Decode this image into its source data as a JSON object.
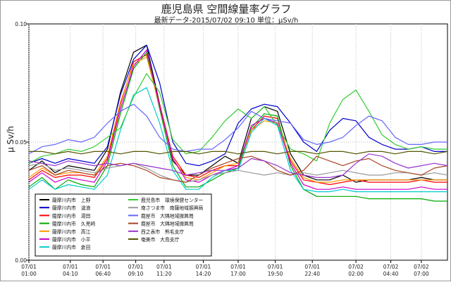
{
  "title": "鹿児島県 空間線量率グラフ",
  "subtitle": "最新データ-2015/07/02 09:10 単位：μSv/h",
  "chart_data": {
    "type": "line",
    "title": "鹿児島県 空間線量率グラフ",
    "subtitle": "最新データ-2015/07/02 09:10 単位：μSv/h",
    "ylabel": "μ Sv/h",
    "ylim": [
      0,
      0.1
    ],
    "y_ticks": [
      "0.00",
      "0.05",
      "0.10"
    ],
    "xlim": [
      0,
      32
    ],
    "x_ticks": [
      {
        "x": 0,
        "date": "07/01",
        "time": "01:00"
      },
      {
        "x": 3.1667,
        "date": "07/01",
        "time": "04:10"
      },
      {
        "x": 5.6667,
        "date": "07/01",
        "time": "06:40"
      },
      {
        "x": 8.1667,
        "date": "07/01",
        "time": "09:10"
      },
      {
        "x": 10.3333,
        "date": "07/01",
        "time": "11:20"
      },
      {
        "x": 13.3333,
        "date": "07/01",
        "time": "14:20"
      },
      {
        "x": 16,
        "date": "07/01",
        "time": "17:00"
      },
      {
        "x": 18.8333,
        "date": "07/01",
        "time": "19:50"
      },
      {
        "x": 21.6667,
        "date": "07/01",
        "time": "22:40"
      },
      {
        "x": 25,
        "date": "07/02",
        "time": "02:00"
      },
      {
        "x": 27.6667,
        "date": "07/02",
        "time": "04:40"
      },
      {
        "x": 30,
        "date": "07/02",
        "time": "07:00"
      }
    ],
    "grid": "dotted vertical lines at ticks, dotted horizontal line at 0.05",
    "legend_position": "bottom-left, two columns",
    "x": [
      0,
      1,
      2,
      3,
      4,
      5,
      6,
      7,
      8,
      9,
      10,
      11,
      12,
      13,
      14,
      15,
      16,
      17,
      18,
      19,
      20,
      21,
      22,
      23,
      24,
      25,
      26,
      27,
      28,
      29,
      30,
      31,
      32
    ],
    "series": [
      {
        "name": "薩摩川内市　上野",
        "color": "#000000",
        "values": [
          0.038,
          0.042,
          0.037,
          0.04,
          0.039,
          0.038,
          0.047,
          0.071,
          0.088,
          0.091,
          0.066,
          0.042,
          0.036,
          0.036,
          0.04,
          0.044,
          0.041,
          0.06,
          0.065,
          0.063,
          0.045,
          0.036,
          0.034,
          0.034,
          0.036,
          0.033,
          0.034,
          0.034,
          0.034,
          0.034,
          0.035,
          0.034,
          0.034
        ]
      },
      {
        "name": "薩摩川内市　滄浪",
        "color": "#0000cc",
        "values": [
          0.041,
          0.043,
          0.041,
          0.043,
          0.042,
          0.041,
          0.048,
          0.07,
          0.085,
          0.091,
          0.075,
          0.05,
          0.041,
          0.04,
          0.042,
          0.045,
          0.058,
          0.064,
          0.066,
          0.065,
          0.058,
          0.05,
          0.046,
          0.055,
          0.06,
          0.059,
          0.052,
          0.049,
          0.047,
          0.047,
          0.048,
          0.046,
          0.046
        ]
      },
      {
        "name": "薩摩川内市　湯田",
        "color": "#ff0000",
        "values": [
          0.034,
          0.038,
          0.035,
          0.036,
          0.036,
          0.035,
          0.043,
          0.066,
          0.084,
          0.087,
          0.066,
          0.044,
          0.036,
          0.035,
          0.038,
          0.04,
          0.04,
          0.055,
          0.061,
          0.06,
          0.042,
          0.034,
          0.033,
          0.032,
          0.033,
          0.034,
          0.033,
          0.033,
          0.033,
          0.033,
          0.034,
          0.033,
          0.033
        ]
      },
      {
        "name": "薩摩川内市　久見崎",
        "color": "#00aa00",
        "values": [
          0.031,
          0.035,
          0.03,
          0.034,
          0.032,
          0.031,
          0.04,
          0.062,
          0.081,
          0.088,
          0.064,
          0.04,
          0.031,
          0.031,
          0.034,
          0.037,
          0.039,
          0.056,
          0.062,
          0.061,
          0.04,
          0.03,
          0.027,
          0.027,
          0.027,
          0.027,
          0.026,
          0.026,
          0.026,
          0.026,
          0.026,
          0.025,
          0.025
        ]
      },
      {
        "name": "薩摩川内市　高江",
        "color": "#ff9900",
        "values": [
          0.035,
          0.039,
          0.036,
          0.037,
          0.037,
          0.036,
          0.044,
          0.067,
          0.083,
          0.086,
          0.065,
          0.043,
          0.035,
          0.034,
          0.037,
          0.04,
          0.041,
          0.055,
          0.059,
          0.058,
          0.043,
          0.035,
          0.033,
          0.033,
          0.034,
          0.034,
          0.034,
          0.034,
          0.034,
          0.034,
          0.034,
          0.034,
          0.034
        ]
      },
      {
        "name": "薩摩川内市　小平",
        "color": "#cc00cc",
        "values": [
          0.033,
          0.037,
          0.033,
          0.035,
          0.034,
          0.033,
          0.042,
          0.064,
          0.082,
          0.089,
          0.065,
          0.043,
          0.034,
          0.033,
          0.036,
          0.038,
          0.04,
          0.057,
          0.06,
          0.058,
          0.041,
          0.032,
          0.03,
          0.03,
          0.031,
          0.03,
          0.03,
          0.03,
          0.03,
          0.03,
          0.031,
          0.03,
          0.03
        ]
      },
      {
        "name": "薩摩川内市　倉田",
        "color": "#00cccc",
        "values": [
          0.03,
          0.034,
          0.03,
          0.032,
          0.031,
          0.03,
          0.036,
          0.055,
          0.07,
          0.073,
          0.058,
          0.038,
          0.03,
          0.03,
          0.035,
          0.038,
          0.038,
          0.054,
          0.06,
          0.057,
          0.038,
          0.03,
          0.029,
          0.029,
          0.03,
          0.029,
          0.029,
          0.029,
          0.029,
          0.029,
          0.029,
          0.029,
          0.029
        ]
      },
      {
        "name": "鹿児島市　環境保健センター",
        "color": "#33cc33",
        "values": [
          0.041,
          0.044,
          0.045,
          0.047,
          0.046,
          0.048,
          0.052,
          0.056,
          0.069,
          0.079,
          0.071,
          0.051,
          0.045,
          0.046,
          0.052,
          0.059,
          0.064,
          0.06,
          0.065,
          0.057,
          0.047,
          0.045,
          0.042,
          0.058,
          0.068,
          0.072,
          0.063,
          0.053,
          0.049,
          0.047,
          0.048,
          0.047,
          0.047
        ]
      },
      {
        "name": "南さつま市　南薩地域振興局",
        "color": "#999999",
        "values": [
          0.04,
          0.041,
          0.038,
          0.039,
          0.038,
          0.037,
          0.039,
          0.04,
          0.041,
          0.039,
          0.036,
          0.034,
          0.033,
          0.034,
          0.036,
          0.037,
          0.038,
          0.037,
          0.036,
          0.037,
          0.036,
          0.037,
          0.036,
          0.037,
          0.038,
          0.037,
          0.036,
          0.036,
          0.037,
          0.037,
          0.036,
          0.037,
          0.036
        ]
      },
      {
        "name": "鹿屋市　大隅地域振興局",
        "color": "#6666ff",
        "values": [
          0.045,
          0.048,
          0.049,
          0.051,
          0.05,
          0.052,
          0.058,
          0.063,
          0.066,
          0.061,
          0.052,
          0.047,
          0.046,
          0.047,
          0.047,
          0.051,
          0.056,
          0.063,
          0.06,
          0.059,
          0.058,
          0.051,
          0.049,
          0.05,
          0.052,
          0.057,
          0.061,
          0.059,
          0.052,
          0.049,
          0.049,
          0.05,
          0.05
        ]
      },
      {
        "name": "鹿屋市　大隅地域振興局",
        "color": "#aa4422",
        "values": [
          0.038,
          0.04,
          0.036,
          0.038,
          0.037,
          0.036,
          0.04,
          0.041,
          0.04,
          0.038,
          0.035,
          0.034,
          0.033,
          0.036,
          0.039,
          0.041,
          0.043,
          0.044,
          0.042,
          0.038,
          0.036,
          0.038,
          0.044,
          0.042,
          0.04,
          0.042,
          0.043,
          0.04,
          0.038,
          0.037,
          0.036,
          0.039,
          0.04
        ]
      },
      {
        "name": "西之表市　熊毛支庁",
        "color": "#9933cc",
        "values": [
          0.042,
          0.041,
          0.04,
          0.042,
          0.041,
          0.04,
          0.041,
          0.04,
          0.041,
          0.04,
          0.039,
          0.038,
          0.036,
          0.037,
          0.038,
          0.038,
          0.039,
          0.043,
          0.042,
          0.04,
          0.037,
          0.036,
          0.035,
          0.035,
          0.036,
          0.041,
          0.045,
          0.044,
          0.041,
          0.039,
          0.04,
          0.041,
          0.04
        ]
      },
      {
        "name": "奄美市　大島支庁",
        "color": "#555500",
        "values": [
          0.046,
          0.046,
          0.045,
          0.046,
          0.045,
          0.046,
          0.046,
          0.045,
          0.046,
          0.046,
          0.045,
          0.046,
          0.046,
          0.045,
          0.046,
          0.046,
          0.045,
          0.046,
          0.046,
          0.045,
          0.046,
          0.046,
          0.045,
          0.046,
          0.046,
          0.045,
          0.046,
          0.046,
          0.045,
          0.046,
          0.046,
          0.045,
          0.046
        ]
      }
    ],
    "legend": [
      {
        "label": "薩摩川内市　上野",
        "color": "#000000"
      },
      {
        "label": "薩摩川内市　滄浪",
        "color": "#0000cc"
      },
      {
        "label": "薩摩川内市　湯田",
        "color": "#ff0000"
      },
      {
        "label": "薩摩川内市　久見崎",
        "color": "#00aa00"
      },
      {
        "label": "薩摩川内市　高江",
        "color": "#ff9900"
      },
      {
        "label": "薩摩川内市　小平",
        "color": "#cc00cc"
      },
      {
        "label": "薩摩川内市　倉田",
        "color": "#00cccc"
      },
      {
        "label": "鹿児島市　環境保健センター",
        "color": "#33cc33"
      },
      {
        "label": "南さつま市　南薩地域振興局",
        "color": "#999999"
      },
      {
        "label": "鹿屋市　大隅地域振興局",
        "color": "#6666ff"
      },
      {
        "label": "鹿屋市　大隅地域振興局",
        "color": "#aa4422"
      },
      {
        "label": "西之表市　熊毛支庁",
        "color": "#9933cc"
      },
      {
        "label": "奄美市　大島支庁",
        "color": "#555500"
      }
    ]
  }
}
